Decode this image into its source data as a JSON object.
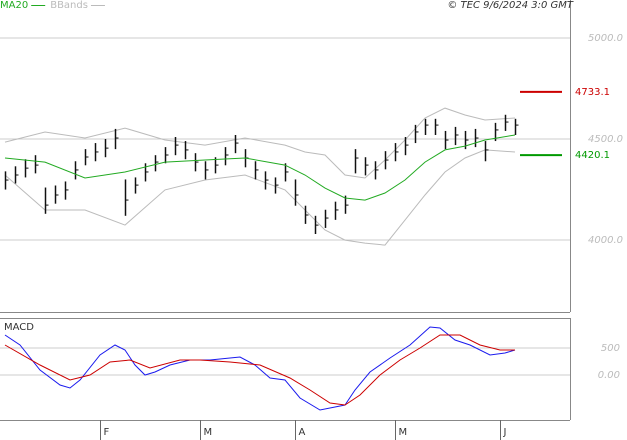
{
  "chart_data": {
    "type": "ohlc",
    "copyright": "© TEC 9/6/2024 3:0 GMT",
    "xlim": [
      -0.5,
      56.5
    ],
    "xticks": [
      {
        "value": 9.5,
        "label": "F"
      },
      {
        "value": 19.5,
        "label": "M"
      },
      {
        "value": 29,
        "label": "A"
      },
      {
        "value": 39,
        "label": "M"
      },
      {
        "value": 49.5,
        "label": "J"
      }
    ],
    "ylim": [
      3644,
      5188
    ],
    "yticks": [
      {
        "value": 4000,
        "label": "4000.0"
      },
      {
        "value": 4500,
        "label": "4500.0"
      },
      {
        "value": 5000,
        "label": "5000.0"
      }
    ],
    "grid": true,
    "bar_color": "#111111",
    "price": {
      "close": [
        4297,
        4322,
        4356,
        4371,
        4173,
        4223,
        4248,
        4347,
        4411,
        4436,
        4455,
        4505,
        4198,
        4272,
        4337,
        4386,
        4421,
        4470,
        4446,
        4386,
        4347,
        4371,
        4421,
        4480,
        4406,
        4347,
        4297,
        4272,
        4337,
        4223,
        4124,
        4074,
        4109,
        4149,
        4173,
        4406,
        4371,
        4347,
        4396,
        4436,
        4470,
        4535,
        4569,
        4569,
        4495,
        4520,
        4495,
        4505,
        4446,
        4545,
        4584,
        4569
      ],
      "high": [
        4340,
        4365,
        4400,
        4420,
        4260,
        4270,
        4290,
        4390,
        4450,
        4480,
        4500,
        4550,
        4300,
        4310,
        4380,
        4420,
        4460,
        4510,
        4490,
        4430,
        4390,
        4410,
        4460,
        4520,
        4450,
        4390,
        4340,
        4310,
        4380,
        4300,
        4170,
        4120,
        4150,
        4190,
        4220,
        4450,
        4410,
        4390,
        4440,
        4480,
        4510,
        4570,
        4600,
        4600,
        4540,
        4560,
        4540,
        4550,
        4490,
        4580,
        4620,
        4600
      ],
      "low": [
        4250,
        4280,
        4310,
        4330,
        4130,
        4180,
        4200,
        4300,
        4370,
        4390,
        4410,
        4450,
        4120,
        4230,
        4290,
        4340,
        4380,
        4420,
        4400,
        4340,
        4300,
        4330,
        4370,
        4430,
        4360,
        4300,
        4250,
        4230,
        4290,
        4170,
        4080,
        4030,
        4060,
        4100,
        4130,
        4330,
        4320,
        4300,
        4350,
        4390,
        4420,
        4480,
        4520,
        4520,
        4450,
        4470,
        4450,
        4460,
        4390,
        4490,
        4540,
        4520
      ]
    },
    "series": [
      {
        "name": "MA20",
        "color": "#22aa22",
        "x": [
          0,
          4,
          8,
          12,
          16,
          20,
          24,
          28,
          30,
          32,
          34,
          36,
          38,
          40,
          42,
          44,
          46,
          48,
          51
        ],
        "values": [
          4406,
          4386,
          4307,
          4337,
          4386,
          4396,
          4406,
          4371,
          4322,
          4257,
          4208,
          4198,
          4233,
          4297,
          4386,
          4446,
          4465,
          4495,
          4520
        ]
      },
      {
        "name": "BBands",
        "color": "#bbbbbb",
        "x": [
          0,
          4,
          8,
          12,
          16,
          20,
          24,
          28,
          30,
          32,
          34,
          36,
          38,
          40,
          42,
          44,
          46,
          48,
          51
        ],
        "upper": [
          4485,
          4535,
          4505,
          4554,
          4495,
          4470,
          4505,
          4470,
          4436,
          4421,
          4322,
          4307,
          4396,
          4495,
          4604,
          4653,
          4619,
          4594,
          4604
        ],
        "lower": [
          4322,
          4149,
          4149,
          4074,
          4248,
          4297,
          4322,
          4248,
          4149,
          4050,
          4000,
          3985,
          3975,
          4099,
          4223,
          4337,
          4406,
          4446,
          4436
        ]
      }
    ],
    "markers": {
      "values": [
        4733.1,
        4420.1
      ],
      "colors": [
        "#cc0000",
        "#009900"
      ]
    },
    "macd": {
      "title": "MACD",
      "ylim": [
        -832.5,
        1054.5
      ],
      "yticks": [
        {
          "value": 0,
          "label": "0.00"
        },
        500
      ],
      "series": [
        {
          "color": "#1a1aee",
          "x": [
            0,
            1.5,
            3.5,
            5.5,
            6.5,
            7.5,
            9.5,
            11,
            12,
            13,
            14,
            15,
            16.5,
            18.5,
            20.5,
            22.5,
            23.5,
            25,
            26.5,
            28,
            29.5,
            31.5,
            34,
            35,
            36.5,
            38.5,
            40.5,
            42.5,
            43.5,
            45,
            46.5,
            48.5,
            50,
            51
          ],
          "values": [
            740,
            555,
            93,
            -185,
            -241,
            -93,
            370,
            555,
            463,
            185,
            0,
            56,
            185,
            278,
            278,
            315,
            333,
            185,
            -56,
            -93,
            -426,
            -648,
            -555,
            -278,
            56,
            315,
            555,
            888,
            870,
            648,
            555,
            370,
            407,
            463
          ]
        },
        {
          "color": "#cc0000",
          "x": [
            0,
            3.5,
            6.5,
            8.5,
            10.5,
            12.5,
            14.5,
            17.5,
            19.5,
            22.5,
            25.5,
            28.5,
            30.5,
            32.5,
            34,
            35.5,
            37.5,
            39.5,
            41.5,
            43.5,
            45.5,
            47.5,
            49.5,
            51
          ],
          "values": [
            555,
            185,
            -93,
            0,
            241,
            278,
            130,
            278,
            278,
            241,
            185,
            -56,
            -278,
            -518,
            -555,
            -370,
            0,
            278,
            500,
            740,
            740,
            555,
            463,
            463
          ]
        }
      ]
    }
  }
}
